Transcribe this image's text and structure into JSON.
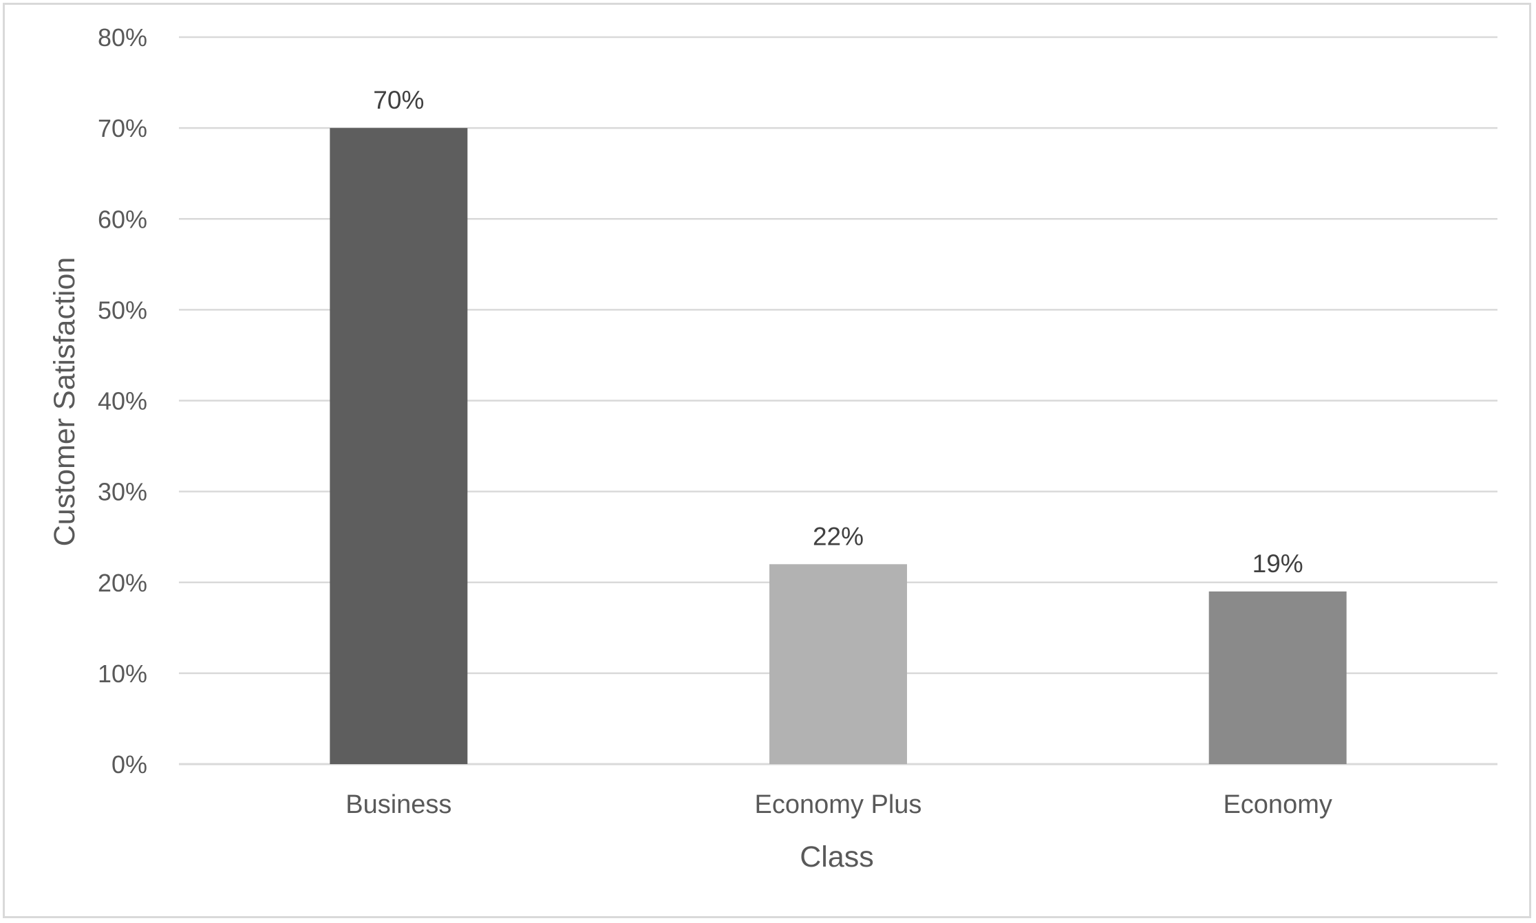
{
  "chart_data": {
    "type": "bar",
    "title": "",
    "xlabel": "Class",
    "ylabel": "Customer Satisfaction",
    "categories": [
      "Business",
      "Economy Plus",
      "Economy"
    ],
    "values": [
      70,
      22,
      19
    ],
    "data_labels": [
      "70%",
      "22%",
      "19%"
    ],
    "bar_colors": [
      "#5e5e5e",
      "#b2b2b2",
      "#8a8a8a"
    ],
    "ylim": [
      0,
      80
    ],
    "y_ticks": [
      0,
      10,
      20,
      30,
      40,
      50,
      60,
      70,
      80
    ],
    "y_tick_labels": [
      "0%",
      "10%",
      "20%",
      "30%",
      "40%",
      "50%",
      "60%",
      "70%",
      "80%"
    ],
    "grid": true,
    "legend": "none"
  }
}
